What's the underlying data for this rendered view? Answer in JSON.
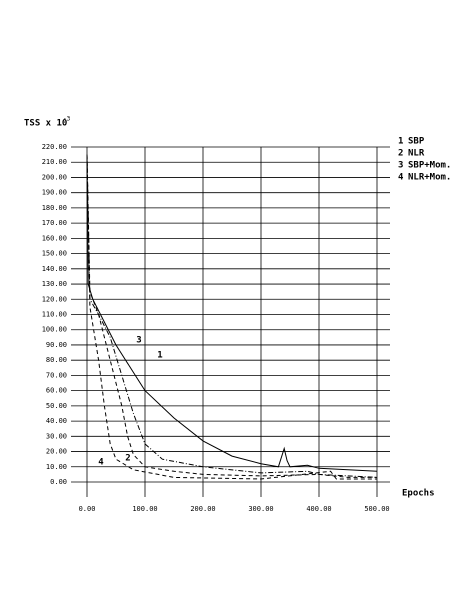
{
  "chart_data": {
    "type": "line",
    "y_label": "TSS x 10",
    "y_label_exp": "-3",
    "x_label": "Epochs",
    "xlim": [
      0,
      500
    ],
    "ylim": [
      0,
      220
    ],
    "xticks": [
      {
        "value": 0,
        "label": "0.00"
      },
      {
        "value": 100,
        "label": "100.00"
      },
      {
        "value": 200,
        "label": "200.00"
      },
      {
        "value": 300,
        "label": "300.00"
      },
      {
        "value": 400,
        "label": "400.00"
      },
      {
        "value": 500,
        "label": "500.00"
      }
    ],
    "yticks": [
      {
        "value": 0,
        "label": "0.00"
      },
      {
        "value": 10,
        "label": "10.00"
      },
      {
        "value": 20,
        "label": "20.00"
      },
      {
        "value": 30,
        "label": "30.00"
      },
      {
        "value": 40,
        "label": "40.00"
      },
      {
        "value": 50,
        "label": "50.00"
      },
      {
        "value": 60,
        "label": "60.00"
      },
      {
        "value": 70,
        "label": "70.00"
      },
      {
        "value": 80,
        "label": "80.00"
      },
      {
        "value": 90,
        "label": "90.00"
      },
      {
        "value": 100,
        "label": "100.00"
      },
      {
        "value": 110,
        "label": "110.00"
      },
      {
        "value": 120,
        "label": "120.00"
      },
      {
        "value": 130,
        "label": "130.00"
      },
      {
        "value": 140,
        "label": "140.00"
      },
      {
        "value": 150,
        "label": "150.00"
      },
      {
        "value": 160,
        "label": "160.00"
      },
      {
        "value": 170,
        "label": "170.00"
      },
      {
        "value": 180,
        "label": "180.00"
      },
      {
        "value": 190,
        "label": "190.00"
      },
      {
        "value": 200,
        "label": "200.00"
      },
      {
        "value": 210,
        "label": "210.00"
      },
      {
        "value": 220,
        "label": "220.00"
      }
    ],
    "grid": true,
    "series": [
      {
        "label": "1",
        "name": "SBP",
        "color": "#000000",
        "dash": "solid",
        "x": [
          0,
          2,
          10,
          30,
          50,
          80,
          100,
          150,
          200,
          250,
          300,
          330,
          340,
          345,
          350,
          380,
          400,
          450,
          500
        ],
        "values": [
          215,
          130,
          120,
          105,
          90,
          72,
          60,
          42,
          27,
          17,
          12,
          10,
          22,
          14,
          10,
          11,
          9,
          8,
          7
        ]
      },
      {
        "label": "2",
        "name": "NLR",
        "color": "#000000",
        "dash": "dashed",
        "x": [
          0,
          5,
          20,
          40,
          60,
          70,
          80,
          100,
          150,
          200,
          300,
          400,
          450,
          500
        ],
        "values": [
          215,
          125,
          110,
          80,
          50,
          30,
          18,
          10,
          7,
          5,
          4,
          5,
          3,
          3
        ]
      },
      {
        "label": "3",
        "name": "SBP+Mom.",
        "color": "#000000",
        "dash": "dashdot",
        "x": [
          0,
          5,
          20,
          40,
          60,
          80,
          100,
          130,
          200,
          300,
          380,
          400,
          500
        ],
        "values": [
          215,
          120,
          110,
          95,
          70,
          45,
          25,
          15,
          10,
          6,
          7,
          5,
          3
        ]
      },
      {
        "label": "4",
        "name": "NLR+Mom.",
        "color": "#000000",
        "dash": "dashed",
        "x": [
          0,
          5,
          20,
          30,
          40,
          50,
          80,
          150,
          300,
          420,
          430,
          500
        ],
        "values": [
          215,
          115,
          80,
          50,
          25,
          15,
          8,
          3,
          2,
          7,
          2,
          2
        ]
      }
    ]
  }
}
